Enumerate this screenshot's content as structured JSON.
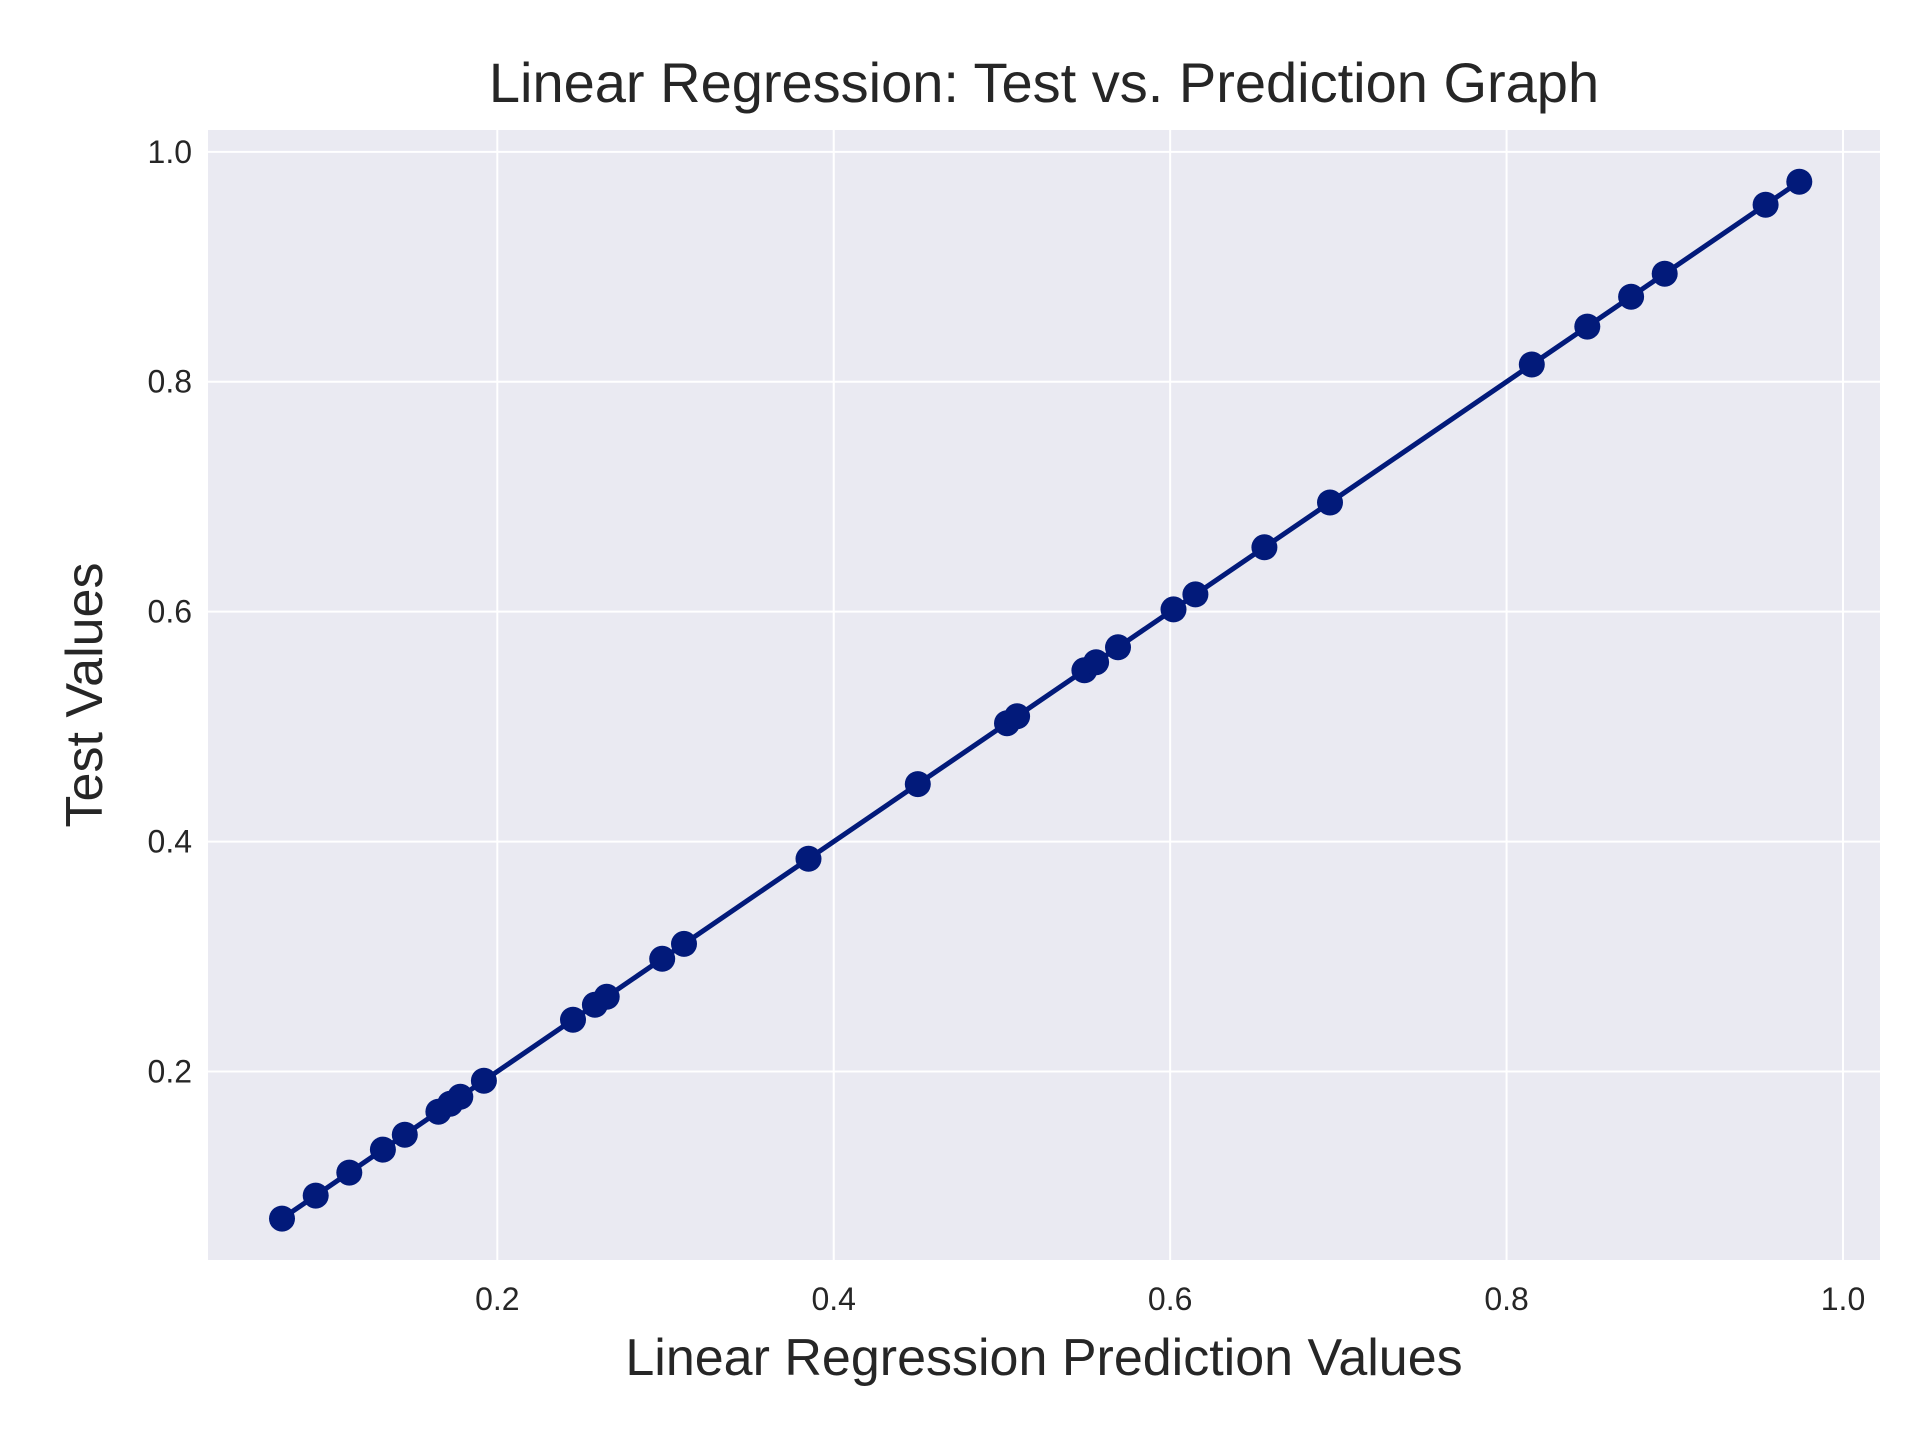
{
  "chart_data": {
    "type": "line",
    "title": "Linear Regression: Test vs. Prediction Graph",
    "xlabel": "Linear Regression Prediction Values",
    "ylabel": "Test Values",
    "xlim": [
      0.028,
      1.022
    ],
    "ylim": [
      0.036,
      1.019
    ],
    "xticks": [
      "0.2",
      "0.4",
      "0.6",
      "0.8",
      "1.0"
    ],
    "yticks": [
      "0.2",
      "0.4",
      "0.6",
      "0.8",
      "1.0"
    ],
    "grid": true,
    "line_style": "solid line with circle markers",
    "colors": {
      "series": "#021a7a",
      "plot_background": "#eaeaf2",
      "grid": "#ffffff",
      "text": "#262626"
    },
    "series": [
      {
        "x": [
          0.072,
          0.092,
          0.112,
          0.132,
          0.145,
          0.165,
          0.172,
          0.178,
          0.192,
          0.245,
          0.258,
          0.265,
          0.298,
          0.311,
          0.385,
          0.45,
          0.503,
          0.509,
          0.549,
          0.556,
          0.569,
          0.602,
          0.615,
          0.656,
          0.695,
          0.815,
          0.848,
          0.874,
          0.894,
          0.954,
          0.974
        ],
        "y": [
          0.072,
          0.092,
          0.112,
          0.132,
          0.145,
          0.165,
          0.172,
          0.178,
          0.192,
          0.245,
          0.258,
          0.265,
          0.298,
          0.311,
          0.385,
          0.45,
          0.503,
          0.509,
          0.549,
          0.556,
          0.569,
          0.602,
          0.615,
          0.656,
          0.695,
          0.815,
          0.848,
          0.874,
          0.894,
          0.954,
          0.974
        ]
      }
    ]
  }
}
